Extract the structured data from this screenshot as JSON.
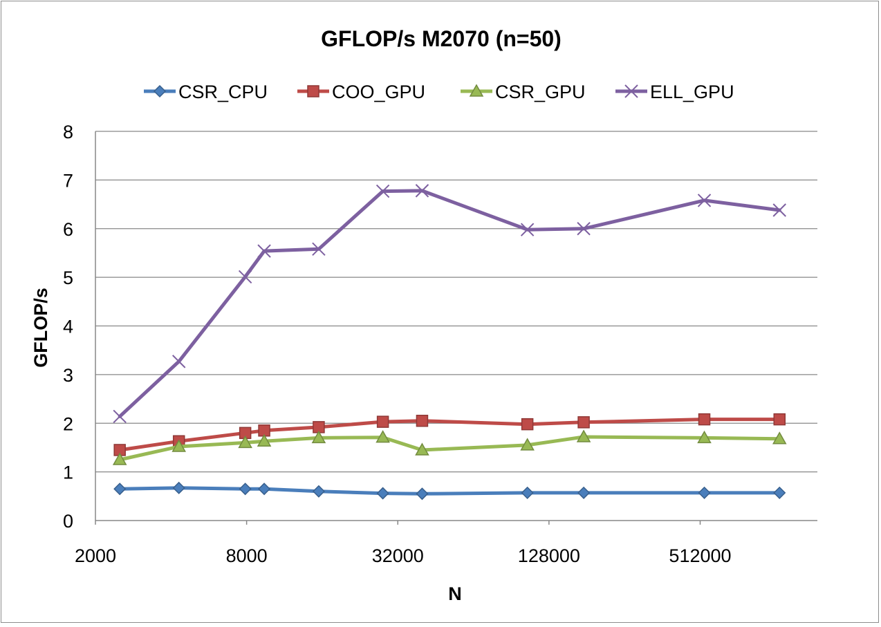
{
  "chart_data": {
    "type": "line",
    "title": "GFLOP/s M2070 (n=50)",
    "xlabel": "N",
    "ylabel": "GFLOP/s",
    "x_scale": "log2",
    "x_ticks": [
      2000,
      8000,
      32000,
      128000,
      512000
    ],
    "x_tick_labels": [
      "2000",
      "8000",
      "32000",
      "128000",
      "512000"
    ],
    "x_range": [
      2000,
      1500000
    ],
    "ylim": [
      0,
      8
    ],
    "y_ticks": [
      0,
      1,
      2,
      3,
      4,
      5,
      6,
      7,
      8
    ],
    "y_tick_labels": [
      "0",
      "1",
      "2",
      "3",
      "4",
      "5",
      "6",
      "7",
      "8"
    ],
    "grid": "horizontal",
    "legend_position": "top",
    "x": [
      2500,
      4300,
      7900,
      9400,
      15500,
      27900,
      40000,
      105000,
      176000,
      532000,
      1060000
    ],
    "series": [
      {
        "name": "CSR_CPU",
        "color": "#4a7ebb",
        "marker": "diamond",
        "values": [
          0.65,
          0.67,
          0.65,
          0.65,
          0.6,
          0.56,
          0.55,
          0.57,
          0.57,
          0.57,
          0.57
        ]
      },
      {
        "name": "COO_GPU",
        "color": "#be4b48",
        "marker": "square",
        "values": [
          1.45,
          1.63,
          1.8,
          1.85,
          1.92,
          2.03,
          2.05,
          1.98,
          2.02,
          2.08,
          2.08
        ]
      },
      {
        "name": "CSR_GPU",
        "color": "#98b954",
        "marker": "triangle",
        "values": [
          1.25,
          1.52,
          1.6,
          1.63,
          1.7,
          1.71,
          1.45,
          1.55,
          1.72,
          1.7,
          1.68
        ]
      },
      {
        "name": "ELL_GPU",
        "color": "#7d60a0",
        "marker": "x",
        "values": [
          2.14,
          3.27,
          5.01,
          5.54,
          5.58,
          6.77,
          6.78,
          5.98,
          6.0,
          6.58,
          6.38
        ]
      }
    ]
  }
}
